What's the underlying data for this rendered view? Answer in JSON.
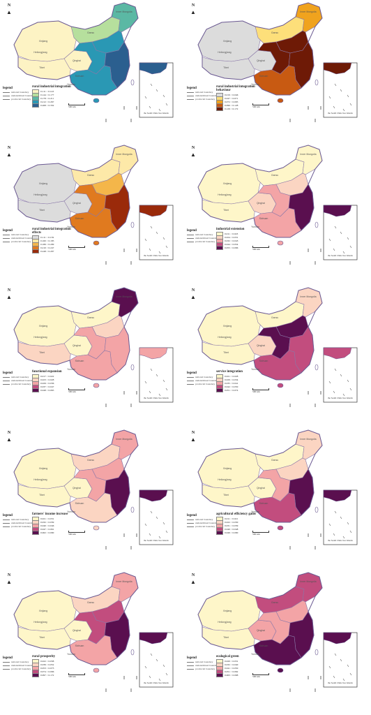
{
  "common": {
    "north_label": "N",
    "legend_heading": "legend",
    "boundary_items": [
      "national boundary",
      "undetermined boundary",
      "provincial boundary"
    ],
    "scale_label": "500 km",
    "inset_caption": "the South China Sea Islands",
    "province_labels": [
      "Xinjiang",
      "Tibet",
      "Qinghai",
      "Gansu",
      "Inner Mongolia",
      "Heilongjiang",
      "Sichuan",
      "Yunnan"
    ]
  },
  "panels": [
    {
      "title": "rural industrial integration",
      "ranges": [
        "0.111 ~ 0.143",
        "0.144 ~ 0.177",
        "0.178 ~ 0.211",
        "0.212 ~ 0.267",
        "0.268 ~ 0.332"
      ],
      "colors": [
        "#fdf3c4",
        "#b6df9d",
        "#5bb8a4",
        "#2a98b4",
        "#2b5f8f"
      ],
      "region_classes": {
        "west": 0,
        "tibet": 0,
        "qinghai": 0,
        "inner": 1,
        "northeast": 2,
        "central": 3,
        "south": 3,
        "east": 4,
        "north": 3
      }
    },
    {
      "title": "rural industrial integration behaviour",
      "ranges": [
        "0.019 ~ 0.046",
        "0.047 ~ 0.071",
        "0.072 ~ 0.095",
        "0.096 ~ 0.128",
        "0.129 ~ 0.172"
      ],
      "colors": [
        "#dcdcdc",
        "#fddf7a",
        "#f0a31e",
        "#c85a12",
        "#6e1a06"
      ],
      "region_classes": {
        "west": 0,
        "tibet": 0,
        "qinghai": 0,
        "inner": 1,
        "northeast": 2,
        "central": 4,
        "south": 3,
        "east": 4,
        "north": 4
      }
    },
    {
      "title": "rural industrial integration effects",
      "ranges": [
        "0.111 ~ 0.159",
        "0.160 ~ 0.185",
        "0.186 ~ 0.209",
        "0.210 ~ 0.247",
        "0.248 ~ 0.297"
      ],
      "colors": [
        "#dcdcdc",
        "#fde9a8",
        "#f4b64a",
        "#e07a1f",
        "#9a2a0a"
      ],
      "region_classes": {
        "west": 0,
        "tibet": 0,
        "qinghai": 0,
        "inner": 1,
        "northeast": 1,
        "central": 3,
        "south": 3,
        "east": 4,
        "north": 2
      }
    },
    {
      "title": "industrial extension",
      "ranges": [
        "0.011 ~ 0.023",
        "0.024 ~ 0.031",
        "0.032 ~ 0.043",
        "0.044 ~ 0.054",
        "0.055 ~ 0.096"
      ],
      "colors": [
        "#fef6c9",
        "#fbd5c2",
        "#f3a4a6",
        "#c24d7e",
        "#5a0f4f"
      ],
      "region_classes": {
        "west": 0,
        "tibet": 0,
        "qinghai": 1,
        "inner": 0,
        "northeast": 0,
        "central": 2,
        "south": 2,
        "east": 4,
        "north": 1
      }
    },
    {
      "title": "functional expansion",
      "ranges": [
        "0.017 ~ 0.022",
        "0.023 ~ 0.028",
        "0.029 ~ 0.036",
        "0.037 ~ 0.047",
        "0.048 ~ 0.065"
      ],
      "colors": [
        "#fef6c9",
        "#fbd5c2",
        "#f3a4a6",
        "#c24d7e",
        "#5a0f4f"
      ],
      "region_classes": {
        "west": 0,
        "tibet": 1,
        "qinghai": 0,
        "inner": 0,
        "northeast": 4,
        "central": 2,
        "south": 2,
        "east": 2,
        "north": 1
      }
    },
    {
      "title": "service integration",
      "ranges": [
        "0.021 ~ 0.028",
        "0.029 ~ 0.034",
        "0.035 ~ 0.041",
        "0.042 ~ 0.050",
        "0.051 ~ 0.074"
      ],
      "colors": [
        "#fef6c9",
        "#fbd5c2",
        "#f3a4a6",
        "#c24d7e",
        "#5a0f4f"
      ],
      "region_classes": {
        "west": 0,
        "tibet": 0,
        "qinghai": 1,
        "inner": 0,
        "northeast": 1,
        "central": 4,
        "south": 3,
        "east": 3,
        "north": 4
      }
    },
    {
      "title": "farmers' income increase",
      "ranges": [
        "0.021 ~ 0.031",
        "0.032 ~ 0.039",
        "0.040 ~ 0.046",
        "0.047 ~ 0.061",
        "0.062 ~ 0.090"
      ],
      "colors": [
        "#fef6c9",
        "#fbd5c2",
        "#f3a4a6",
        "#c24d7e",
        "#5a0f4f"
      ],
      "region_classes": {
        "west": 0,
        "tibet": 0,
        "qinghai": 0,
        "inner": 1,
        "northeast": 2,
        "central": 2,
        "south": 1,
        "east": 4,
        "north": 2
      }
    },
    {
      "title": "agricultural efficiency gains",
      "ranges": [
        "0.011 ~ 0.021",
        "0.022 ~ 0.030",
        "0.031 ~ 0.039",
        "0.040 ~ 0.048",
        "0.049 ~ 0.090"
      ],
      "colors": [
        "#fef6c9",
        "#fbd5c2",
        "#f3a4a6",
        "#c24d7e",
        "#5a0f4f"
      ],
      "region_classes": {
        "west": 0,
        "tibet": 0,
        "qinghai": 0,
        "inner": 0,
        "northeast": 1,
        "central": 2,
        "south": 3,
        "east": 4,
        "north": 1
      }
    },
    {
      "title": "rural prosperity",
      "ranges": [
        "0.022 ~ 0.038",
        "0.039 ~ 0.052",
        "0.053 ~ 0.073",
        "0.074 ~ 0.096",
        "0.097 ~ 0.172"
      ],
      "colors": [
        "#fef6c9",
        "#fbd5c2",
        "#f3a4a6",
        "#c24d7e",
        "#5a0f4f"
      ],
      "region_classes": {
        "west": 0,
        "tibet": 0,
        "qinghai": 0,
        "inner": 1,
        "northeast": 2,
        "central": 3,
        "south": 2,
        "east": 4,
        "north": 3
      }
    },
    {
      "title": "ecological green",
      "ranges": [
        "0.020 ~ 0.031",
        "0.032 ~ 0.040",
        "0.041 ~ 0.050",
        "0.051 ~ 0.062",
        "0.063 ~ 0.098"
      ],
      "colors": [
        "#fef6c9",
        "#fbd5c2",
        "#f3a4a6",
        "#c24d7e",
        "#5a0f4f"
      ],
      "region_classes": {
        "west": 0,
        "tibet": 0,
        "qinghai": 2,
        "inner": 3,
        "northeast": 3,
        "central": 2,
        "south": 4,
        "east": 4,
        "north": 2
      }
    }
  ]
}
